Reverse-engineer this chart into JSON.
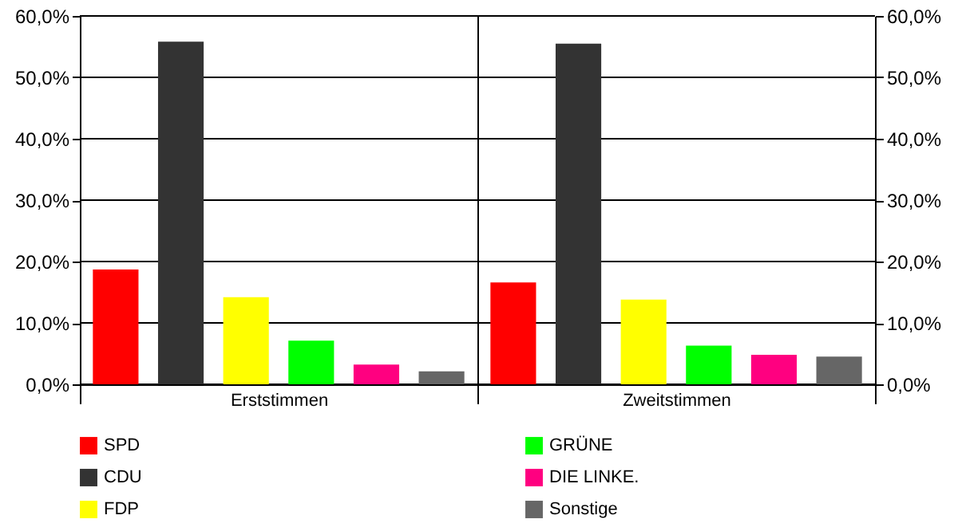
{
  "chart_data": {
    "type": "bar",
    "categories": [
      "Erststimmen",
      "Zweitstimmen"
    ],
    "series": [
      {
        "name": "SPD",
        "color": "#ff0000",
        "values": [
          18.7,
          16.6
        ]
      },
      {
        "name": "CDU",
        "color": "#333333",
        "values": [
          55.8,
          55.5
        ]
      },
      {
        "name": "FDP",
        "color": "#ffff00",
        "values": [
          14.2,
          13.8
        ]
      },
      {
        "name": "GRÜNE",
        "color": "#00ff00",
        "values": [
          7.1,
          6.3
        ]
      },
      {
        "name": "DIE LINKE.",
        "color": "#ff0080",
        "values": [
          3.2,
          4.8
        ]
      },
      {
        "name": "Sonstige",
        "color": "#666666",
        "values": [
          2.1,
          4.5
        ]
      }
    ],
    "ylim": [
      0,
      60
    ],
    "yticks": [
      {
        "value": 0,
        "label": "0,0%"
      },
      {
        "value": 10,
        "label": "10,0%"
      },
      {
        "value": 20,
        "label": "20,0%"
      },
      {
        "value": 30,
        "label": "30,0%"
      },
      {
        "value": 40,
        "label": "40,0%"
      },
      {
        "value": 50,
        "label": "50,0%"
      },
      {
        "value": 60,
        "label": "60,0%"
      }
    ],
    "y2lim": [
      0,
      60
    ],
    "y2ticks": [
      {
        "value": 0,
        "label": "0,0%"
      },
      {
        "value": 10,
        "label": "10,0%"
      },
      {
        "value": 20,
        "label": "20,0%"
      },
      {
        "value": 30,
        "label": "30,0%"
      },
      {
        "value": 40,
        "label": "40,0%"
      },
      {
        "value": 50,
        "label": "50,0%"
      },
      {
        "value": 60,
        "label": "60,0%"
      }
    ],
    "grid": true,
    "legend": "bottom"
  }
}
